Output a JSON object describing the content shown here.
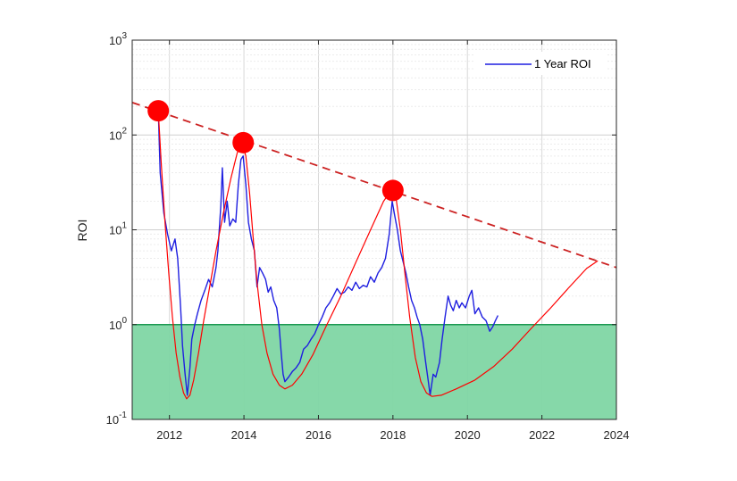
{
  "chart_data": {
    "type": "line",
    "title": "",
    "xlabel": "",
    "ylabel": "ROI",
    "yscale": "log",
    "xlim": [
      2011,
      2024
    ],
    "ylim": [
      0.1,
      1000
    ],
    "grid": true,
    "legend": {
      "placement": "top-right",
      "entries": [
        "1 Year ROI"
      ]
    },
    "x_ticks": [
      {
        "value": 2012,
        "label": "2012"
      },
      {
        "value": 2014,
        "label": "2014"
      },
      {
        "value": 2016,
        "label": "2016"
      },
      {
        "value": 2018,
        "label": "2018"
      },
      {
        "value": 2020,
        "label": "2020"
      },
      {
        "value": 2022,
        "label": "2022"
      },
      {
        "value": 2024,
        "label": "2024"
      }
    ],
    "y_ticks": [
      {
        "value": 0.1,
        "base": "10",
        "exp": "-1"
      },
      {
        "value": 1,
        "base": "10",
        "exp": "0"
      },
      {
        "value": 10,
        "base": "10",
        "exp": "1"
      },
      {
        "value": 100,
        "base": "10",
        "exp": "2"
      },
      {
        "value": 1000,
        "base": "10",
        "exp": "3"
      }
    ],
    "shaded_region": {
      "y_from": 0.1,
      "y_to": 1.0,
      "color": "#7fd6a4",
      "edge_color": "#1a9850"
    },
    "series": [
      {
        "name": "1 Year ROI",
        "color": "#1f1fe0",
        "points": [
          [
            2011.7,
            180
          ],
          [
            2011.75,
            40
          ],
          [
            2011.85,
            15
          ],
          [
            2011.95,
            9
          ],
          [
            2012.05,
            6
          ],
          [
            2012.15,
            8
          ],
          [
            2012.22,
            5
          ],
          [
            2012.3,
            1.5
          ],
          [
            2012.35,
            0.6
          ],
          [
            2012.42,
            0.3
          ],
          [
            2012.48,
            0.18
          ],
          [
            2012.55,
            0.35
          ],
          [
            2012.6,
            0.7
          ],
          [
            2012.68,
            1.0
          ],
          [
            2012.75,
            1.3
          ],
          [
            2012.85,
            1.8
          ],
          [
            2012.95,
            2.3
          ],
          [
            2013.05,
            3.0
          ],
          [
            2013.15,
            2.5
          ],
          [
            2013.25,
            4.0
          ],
          [
            2013.3,
            6.0
          ],
          [
            2013.38,
            18
          ],
          [
            2013.42,
            45
          ],
          [
            2013.48,
            12
          ],
          [
            2013.55,
            20
          ],
          [
            2013.62,
            11
          ],
          [
            2013.7,
            13
          ],
          [
            2013.78,
            12
          ],
          [
            2013.85,
            30
          ],
          [
            2013.92,
            55
          ],
          [
            2013.98,
            60
          ],
          [
            2014.05,
            30
          ],
          [
            2014.12,
            12
          ],
          [
            2014.2,
            8
          ],
          [
            2014.28,
            6
          ],
          [
            2014.35,
            2.5
          ],
          [
            2014.42,
            4.0
          ],
          [
            2014.5,
            3.5
          ],
          [
            2014.58,
            3.0
          ],
          [
            2014.65,
            2.2
          ],
          [
            2014.72,
            2.5
          ],
          [
            2014.8,
            1.8
          ],
          [
            2014.88,
            1.5
          ],
          [
            2014.95,
            0.9
          ],
          [
            2015.0,
            0.5
          ],
          [
            2015.05,
            0.3
          ],
          [
            2015.1,
            0.25
          ],
          [
            2015.2,
            0.28
          ],
          [
            2015.3,
            0.32
          ],
          [
            2015.4,
            0.35
          ],
          [
            2015.5,
            0.4
          ],
          [
            2015.6,
            0.55
          ],
          [
            2015.7,
            0.6
          ],
          [
            2015.8,
            0.7
          ],
          [
            2015.9,
            0.8
          ],
          [
            2016.0,
            1.0
          ],
          [
            2016.1,
            1.2
          ],
          [
            2016.2,
            1.5
          ],
          [
            2016.3,
            1.7
          ],
          [
            2016.4,
            2.0
          ],
          [
            2016.5,
            2.4
          ],
          [
            2016.6,
            2.1
          ],
          [
            2016.7,
            2.2
          ],
          [
            2016.8,
            2.5
          ],
          [
            2016.9,
            2.3
          ],
          [
            2017.0,
            2.8
          ],
          [
            2017.1,
            2.4
          ],
          [
            2017.2,
            2.6
          ],
          [
            2017.3,
            2.5
          ],
          [
            2017.4,
            3.2
          ],
          [
            2017.5,
            2.8
          ],
          [
            2017.6,
            3.5
          ],
          [
            2017.7,
            4.0
          ],
          [
            2017.8,
            5.0
          ],
          [
            2017.9,
            9.0
          ],
          [
            2017.98,
            20
          ],
          [
            2018.05,
            14
          ],
          [
            2018.12,
            10
          ],
          [
            2018.2,
            6
          ],
          [
            2018.28,
            4.5
          ],
          [
            2018.35,
            3.5
          ],
          [
            2018.42,
            2.5
          ],
          [
            2018.5,
            1.8
          ],
          [
            2018.58,
            1.5
          ],
          [
            2018.65,
            1.2
          ],
          [
            2018.72,
            1.0
          ],
          [
            2018.8,
            0.7
          ],
          [
            2018.88,
            0.4
          ],
          [
            2018.95,
            0.25
          ],
          [
            2019.0,
            0.18
          ],
          [
            2019.08,
            0.3
          ],
          [
            2019.15,
            0.28
          ],
          [
            2019.25,
            0.4
          ],
          [
            2019.32,
            0.7
          ],
          [
            2019.4,
            1.2
          ],
          [
            2019.48,
            2.0
          ],
          [
            2019.55,
            1.6
          ],
          [
            2019.62,
            1.4
          ],
          [
            2019.7,
            1.8
          ],
          [
            2019.78,
            1.5
          ],
          [
            2019.85,
            1.7
          ],
          [
            2019.95,
            1.5
          ],
          [
            2020.05,
            2.0
          ],
          [
            2020.12,
            2.3
          ],
          [
            2020.2,
            1.3
          ],
          [
            2020.3,
            1.5
          ],
          [
            2020.4,
            1.2
          ],
          [
            2020.5,
            1.1
          ],
          [
            2020.6,
            0.85
          ],
          [
            2020.68,
            0.95
          ],
          [
            2020.75,
            1.1
          ],
          [
            2020.82,
            1.25
          ]
        ]
      },
      {
        "name": "",
        "color": "#ff0000",
        "points": [
          [
            2011.7,
            180
          ],
          [
            2011.78,
            50
          ],
          [
            2011.88,
            12
          ],
          [
            2011.98,
            3.5
          ],
          [
            2012.08,
            1.2
          ],
          [
            2012.18,
            0.5
          ],
          [
            2012.28,
            0.28
          ],
          [
            2012.38,
            0.19
          ],
          [
            2012.46,
            0.165
          ],
          [
            2012.55,
            0.18
          ],
          [
            2012.65,
            0.26
          ],
          [
            2012.78,
            0.5
          ],
          [
            2012.92,
            1.1
          ],
          [
            2013.08,
            2.5
          ],
          [
            2013.25,
            6.0
          ],
          [
            2013.45,
            15
          ],
          [
            2013.65,
            35
          ],
          [
            2013.82,
            65
          ],
          [
            2013.95,
            82
          ],
          [
            2014.05,
            60
          ],
          [
            2014.15,
            25
          ],
          [
            2014.25,
            8
          ],
          [
            2014.35,
            2.8
          ],
          [
            2014.48,
            1.0
          ],
          [
            2014.62,
            0.5
          ],
          [
            2014.78,
            0.3
          ],
          [
            2014.95,
            0.23
          ],
          [
            2015.1,
            0.21
          ],
          [
            2015.3,
            0.23
          ],
          [
            2015.55,
            0.3
          ],
          [
            2015.85,
            0.48
          ],
          [
            2016.2,
            0.95
          ],
          [
            2016.6,
            2.0
          ],
          [
            2017.0,
            4.5
          ],
          [
            2017.4,
            10
          ],
          [
            2017.75,
            20
          ],
          [
            2017.95,
            26
          ],
          [
            2018.08,
            22
          ],
          [
            2018.2,
            10
          ],
          [
            2018.32,
            3.5
          ],
          [
            2018.45,
            1.2
          ],
          [
            2018.6,
            0.45
          ],
          [
            2018.75,
            0.25
          ],
          [
            2018.9,
            0.19
          ],
          [
            2019.05,
            0.175
          ],
          [
            2019.3,
            0.18
          ],
          [
            2019.7,
            0.21
          ],
          [
            2020.2,
            0.26
          ],
          [
            2020.7,
            0.36
          ],
          [
            2021.2,
            0.55
          ],
          [
            2021.7,
            0.9
          ],
          [
            2022.2,
            1.45
          ],
          [
            2022.7,
            2.4
          ],
          [
            2023.2,
            3.9
          ],
          [
            2023.5,
            4.7
          ]
        ]
      }
    ],
    "trend_line": {
      "points": [
        [
          2011,
          220
        ],
        [
          2024,
          4.0
        ]
      ],
      "color": "#cc2222",
      "style": "dashed"
    },
    "peak_markers": {
      "color": "#ff0000",
      "points": [
        [
          2011.7,
          180
        ],
        [
          2013.98,
          83
        ],
        [
          2018.0,
          26
        ]
      ]
    }
  }
}
